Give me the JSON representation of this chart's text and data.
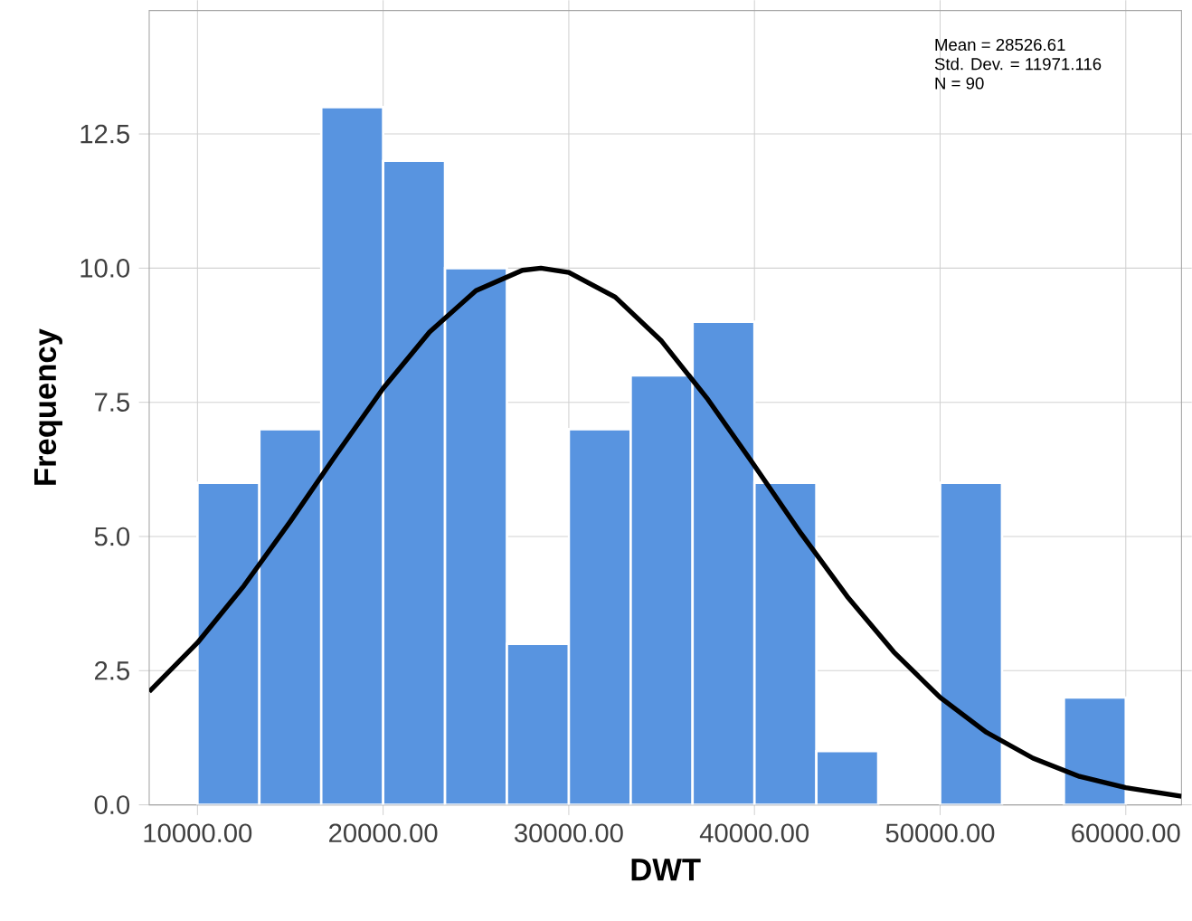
{
  "chart_data": {
    "type": "histogram",
    "xlabel": "DWT",
    "ylabel": "Frequency",
    "annotations": [
      "Mean = 28526.61",
      "Std. Dev. = 11971.116",
      "N = 90"
    ],
    "series": [
      {
        "color": "#5894e0",
        "bins": [
          10000,
          13333.33,
          16666.67,
          20000,
          23333.33,
          26666.67,
          30000,
          33333.33,
          36666.67,
          40000,
          43333.33,
          46666.67,
          50000,
          53333.33,
          56666.67,
          60000
        ],
        "values": [
          6,
          7,
          13,
          12,
          10,
          3,
          7,
          8,
          9,
          6,
          1,
          0,
          6,
          0,
          2
        ]
      },
      {
        "type": "line",
        "color": "#000000",
        "x": [
          7400,
          10000,
          12500,
          15000,
          17500,
          20000,
          22500,
          25000,
          27500,
          28500,
          30000,
          32500,
          35000,
          37500,
          40000,
          42500,
          45000,
          47500,
          50000,
          52500,
          55000,
          57500,
          60000,
          63000
        ],
        "values": [
          2.11,
          3.02,
          4.08,
          5.28,
          6.54,
          7.76,
          8.81,
          9.58,
          9.96,
          10.0,
          9.92,
          9.46,
          8.64,
          7.55,
          6.32,
          5.06,
          3.88,
          2.85,
          2.0,
          1.35,
          0.87,
          0.53,
          0.32,
          0.16
        ]
      }
    ],
    "xlim": [
      7400,
      63000
    ],
    "ylim": [
      0,
      14.8
    ],
    "xticks": [
      {
        "value": 10000,
        "label": "10000.00"
      },
      {
        "value": 20000,
        "label": "20000.00"
      },
      {
        "value": 30000,
        "label": "30000.00"
      },
      {
        "value": 40000,
        "label": "40000.00"
      },
      {
        "value": 50000,
        "label": "50000.00"
      },
      {
        "value": 60000,
        "label": "60000.00"
      }
    ],
    "yticks": [
      {
        "value": 0,
        "label": "0.0"
      },
      {
        "value": 2.5,
        "label": "2.5"
      },
      {
        "value": 5,
        "label": "5.0"
      },
      {
        "value": 7.5,
        "label": "7.5"
      },
      {
        "value": 10,
        "label": "10.0"
      },
      {
        "value": 12.5,
        "label": "12.5"
      }
    ],
    "grid": true
  }
}
